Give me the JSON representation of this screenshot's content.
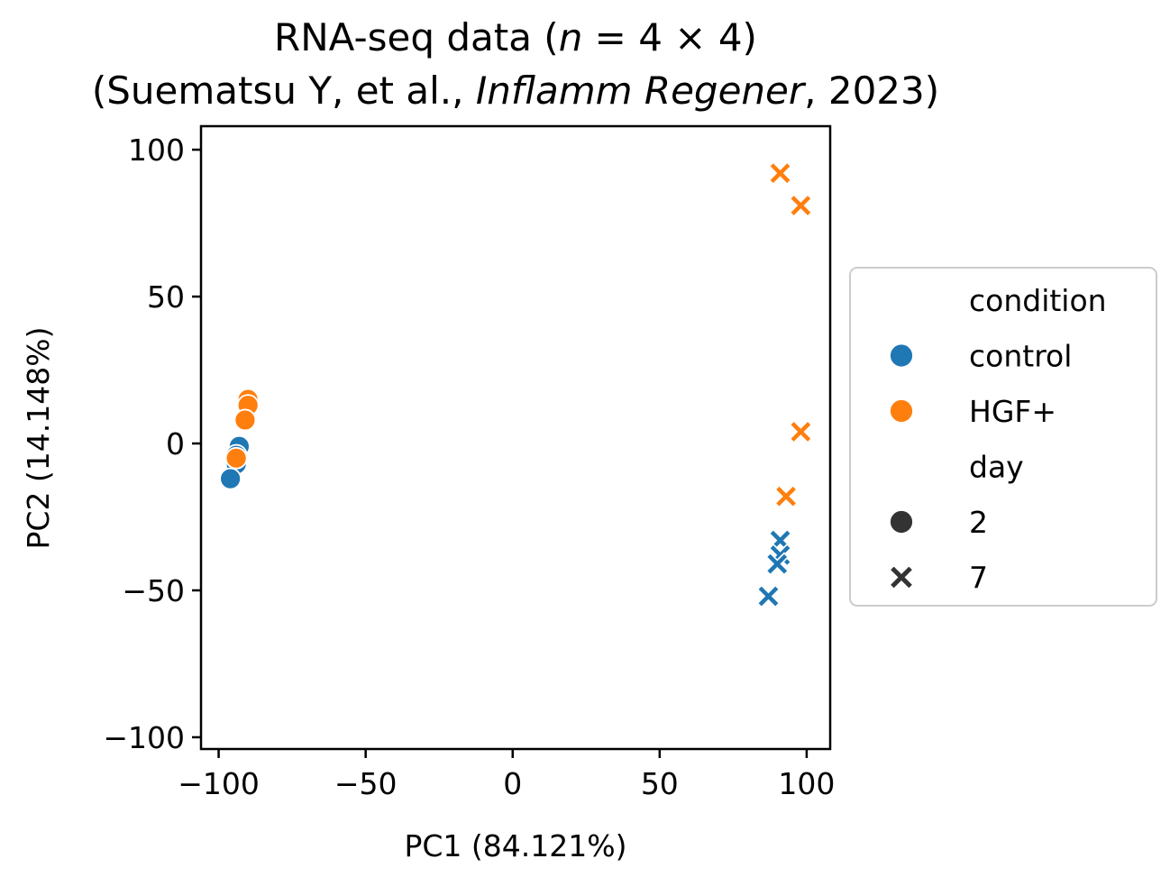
{
  "chart_data": {
    "type": "scatter",
    "title": {
      "line1_prefix": "RNA-seq data (",
      "line1_n": "n",
      "line1_eq": " = 4 × 4)",
      "line2_prefix": "(Suematsu Y, et al., ",
      "line2_italic": "Inflamm Regener",
      "line2_suffix": ", 2023)"
    },
    "xlabel": "PC1 (84.121%)",
    "ylabel": "PC2 (14.148%)",
    "xlim": [
      -106,
      108
    ],
    "ylim": [
      -104,
      108
    ],
    "xticks": [
      -100,
      -50,
      0,
      50,
      100
    ],
    "yticks": [
      -100,
      -50,
      0,
      50,
      100
    ],
    "xtick_labels": [
      "−100",
      "−50",
      "0",
      "50",
      "100"
    ],
    "ytick_labels": [
      "−100",
      "−50",
      "0",
      "50",
      "100"
    ],
    "grid": false,
    "legend": {
      "placement": "right-outside",
      "hue_title": "condition",
      "style_title": "day",
      "entries": [
        {
          "kind": "title",
          "label": "condition"
        },
        {
          "kind": "hue",
          "label": "control",
          "color": "#1f77b4"
        },
        {
          "kind": "hue",
          "label": "HGF+",
          "color": "#ff7f0e"
        },
        {
          "kind": "title",
          "label": "day"
        },
        {
          "kind": "style",
          "label": "2",
          "marker": "circle"
        },
        {
          "kind": "style",
          "label": "7",
          "marker": "x"
        }
      ]
    },
    "colors": {
      "control": "#1f77b4",
      "HGF+": "#ff7f0e",
      "style_marker": "#333333"
    },
    "series": [
      {
        "condition": "control",
        "day": "2",
        "marker": "circle",
        "points": [
          [
            -93,
            -1
          ],
          [
            -94,
            -4
          ],
          [
            -94,
            -7
          ],
          [
            -96,
            -12
          ]
        ]
      },
      {
        "condition": "HGF+",
        "day": "2",
        "marker": "circle",
        "points": [
          [
            -90,
            15
          ],
          [
            -90,
            13
          ],
          [
            -91,
            8
          ],
          [
            -94,
            -5
          ]
        ]
      },
      {
        "condition": "control",
        "day": "7",
        "marker": "x",
        "points": [
          [
            91,
            -33
          ],
          [
            91,
            -38
          ],
          [
            90,
            -41
          ],
          [
            87,
            -52
          ]
        ]
      },
      {
        "condition": "HGF+",
        "day": "7",
        "marker": "x",
        "points": [
          [
            91,
            92
          ],
          [
            98,
            81
          ],
          [
            98,
            4
          ],
          [
            93,
            -18
          ]
        ]
      }
    ]
  }
}
